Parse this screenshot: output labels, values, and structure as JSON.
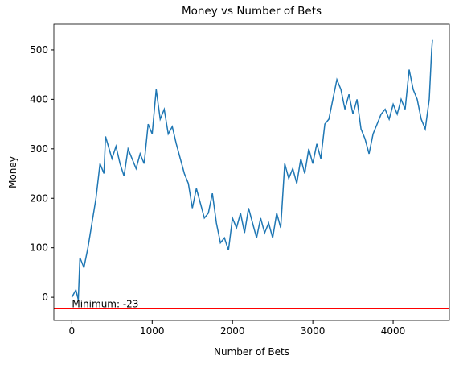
{
  "chart_data": {
    "type": "line",
    "title": "Money vs Number of Bets",
    "xlabel": "Number of Bets",
    "ylabel": "Money",
    "x": [
      0,
      50,
      80,
      100,
      150,
      200,
      250,
      300,
      350,
      400,
      420,
      500,
      550,
      600,
      650,
      700,
      750,
      800,
      850,
      900,
      950,
      1000,
      1050,
      1100,
      1150,
      1200,
      1250,
      1300,
      1350,
      1400,
      1450,
      1500,
      1550,
      1600,
      1650,
      1700,
      1750,
      1800,
      1850,
      1900,
      1950,
      2000,
      2050,
      2100,
      2150,
      2200,
      2250,
      2300,
      2350,
      2400,
      2450,
      2500,
      2550,
      2600,
      2650,
      2700,
      2750,
      2800,
      2850,
      2900,
      2950,
      3000,
      3050,
      3100,
      3150,
      3200,
      3250,
      3300,
      3350,
      3400,
      3450,
      3500,
      3550,
      3600,
      3650,
      3700,
      3750,
      3800,
      3850,
      3900,
      3950,
      4000,
      4050,
      4100,
      4150,
      4200,
      4250,
      4300,
      4350,
      4400,
      4450,
      4480,
      4490
    ],
    "series": [
      {
        "name": "Money",
        "color": "#1f77b4",
        "values": [
          0,
          15,
          -5,
          80,
          60,
          100,
          150,
          200,
          270,
          250,
          325,
          280,
          305,
          270,
          245,
          300,
          280,
          260,
          290,
          270,
          350,
          330,
          420,
          360,
          380,
          330,
          345,
          310,
          280,
          250,
          230,
          180,
          220,
          190,
          160,
          170,
          210,
          150,
          110,
          120,
          95,
          160,
          140,
          170,
          130,
          180,
          150,
          120,
          160,
          130,
          150,
          120,
          170,
          140,
          270,
          240,
          260,
          230,
          280,
          250,
          300,
          270,
          310,
          280,
          350,
          360,
          400,
          440,
          420,
          380,
          410,
          370,
          400,
          340,
          320,
          290,
          330,
          350,
          370,
          380,
          360,
          390,
          370,
          400,
          380,
          460,
          420,
          400,
          360,
          340,
          400,
          500,
          520
        ]
      }
    ],
    "hline": {
      "value": -23,
      "color": "#ff0000"
    },
    "annotation": {
      "text": "Minimum: -23",
      "x": 0,
      "y": -23
    },
    "xlim": [
      -224,
      4700
    ],
    "ylim": [
      -47,
      552
    ],
    "xticks": [
      0,
      1000,
      2000,
      3000,
      4000
    ],
    "yticks": [
      0,
      100,
      200,
      300,
      400,
      500
    ]
  }
}
